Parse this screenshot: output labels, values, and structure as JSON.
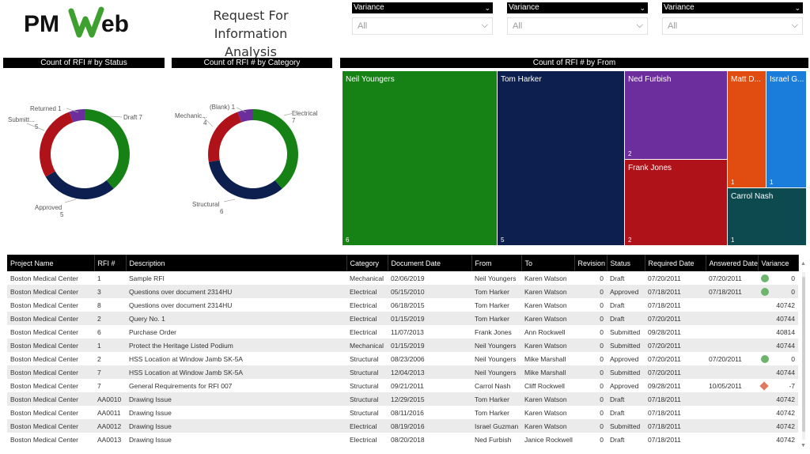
{
  "header": {
    "logo_text": "PMWeb",
    "title_line1": "Request For Information",
    "title_line2": "Analysis"
  },
  "slicers": [
    {
      "label": "Variance",
      "value": "All"
    },
    {
      "label": "Variance",
      "value": "All"
    },
    {
      "label": "Variance",
      "value": "All"
    }
  ],
  "panels": {
    "status_title": "Count of RFI # by Status",
    "category_title": "Count of RFI # by Category",
    "from_title": "Count of RFI # by From"
  },
  "colors": {
    "green": "#168216",
    "navy": "#0c1f4e",
    "red": "#b0121a",
    "purple": "#6b2e9c",
    "orange": "#e14c10",
    "blue": "#1a7ddb",
    "teal": "#0c4a4f"
  },
  "chart_data": [
    {
      "type": "pie",
      "title": "Count of RFI # by Status",
      "categories": [
        "Draft",
        "Approved",
        "Submitted",
        "Returned"
      ],
      "values": [
        7,
        5,
        5,
        1
      ],
      "labels": [
        "Draft 7",
        "Approved 5",
        "Submitt... 5",
        "Returned 1"
      ],
      "colors": [
        "#168216",
        "#0c1f4e",
        "#b0121a",
        "#6b2e9c"
      ]
    },
    {
      "type": "pie",
      "title": "Count of RFI # by Category",
      "categories": [
        "Electrical",
        "Structural",
        "Mechanical",
        "(Blank)"
      ],
      "values": [
        7,
        6,
        4,
        1
      ],
      "labels": [
        "Electrical 7",
        "Structural 6",
        "Mechanic... 4",
        "(Blank) 1"
      ],
      "colors": [
        "#168216",
        "#0c1f4e",
        "#b0121a",
        "#6b2e9c"
      ]
    },
    {
      "type": "treemap",
      "title": "Count of RFI # by From",
      "categories": [
        "Neil Youngers",
        "Tom Harker",
        "Ned Furbish",
        "Frank Jones",
        "Matt D...",
        "Israel G...",
        "Carrol Nash"
      ],
      "values": [
        6,
        5,
        2,
        2,
        1,
        1,
        1
      ],
      "colors": [
        "#168216",
        "#0c1f4e",
        "#6b2e9c",
        "#b0121a",
        "#e14c10",
        "#1a7ddb",
        "#0c4a4f"
      ]
    }
  ],
  "table": {
    "columns": [
      "Project Name",
      "RFI #",
      "Description",
      "Category",
      "Document Date",
      "From",
      "To",
      "Revision",
      "Status",
      "Required Date",
      "Answered Date",
      "Variance"
    ],
    "rows": [
      [
        "Boston Medical Center",
        "1",
        "Sample RFI",
        "Mechanical",
        "02/06/2019",
        "Neil Youngers",
        "Karen Watson",
        "0",
        "Draft",
        "07/20/2011",
        "07/20/2011",
        "0"
      ],
      [
        "Boston Medical Center",
        "3",
        "Questions over document 2314HU",
        "Electrical",
        "05/15/2010",
        "Tom Harker",
        "Karen Watson",
        "0",
        "Approved",
        "07/18/2011",
        "07/18/2011",
        "0"
      ],
      [
        "Boston Medical Center",
        "8",
        "Questions over document 2314HU",
        "Electrical",
        "06/18/2015",
        "Tom Harker",
        "Karen Watson",
        "0",
        "Draft",
        "07/18/2011",
        "",
        "40742"
      ],
      [
        "Boston Medical Center",
        "2",
        "Query No. 1",
        "Electrical",
        "01/15/2019",
        "Tom Harker",
        "Karen Watson",
        "0",
        "Draft",
        "07/20/2011",
        "",
        "40744"
      ],
      [
        "Boston Medical Center",
        "6",
        "Purchase Order",
        "Electrical",
        "11/07/2013",
        "Frank Jones",
        "Ann Rockwell",
        "0",
        "Submitted",
        "09/28/2011",
        "",
        "40814"
      ],
      [
        "Boston Medical Center",
        "1",
        "Protect the Heritage Listed Podium",
        "Mechanical",
        "01/15/2019",
        "Neil Youngers",
        "Karen Watson",
        "0",
        "Submitted",
        "07/20/2011",
        "",
        "40744"
      ],
      [
        "Boston Medical Center",
        "2",
        "HSS Location at Window Jamb SK-5A",
        "Structural",
        "08/23/2006",
        "Neil Youngers",
        "Mike Marshall",
        "0",
        "Approved",
        "07/20/2011",
        "07/20/2011",
        "0"
      ],
      [
        "Boston Medical Center",
        "7",
        "HSS Location at Window Jamb SK-5A",
        "Structural",
        "12/04/2013",
        "Neil Youngers",
        "Mike Marshall",
        "0",
        "Submitted",
        "07/20/2011",
        "",
        "40744"
      ],
      [
        "Boston Medical Center",
        "7",
        "General Requirements for RFI 007",
        "Structural",
        "09/21/2011",
        "Carrol Nash",
        "Cliff Rockwell",
        "0",
        "Approved",
        "09/28/2011",
        "10/05/2011",
        "-7"
      ],
      [
        "Boston Medical Center",
        "AA0010",
        "Drawing Issue",
        "Structural",
        "12/29/2015",
        "Tom Harker",
        "Karen Watson",
        "0",
        "Draft",
        "07/18/2011",
        "",
        "40742"
      ],
      [
        "Boston Medical Center",
        "AA0011",
        "Drawing Issue",
        "Structural",
        "08/11/2016",
        "Tom Harker",
        "Karen Watson",
        "0",
        "Draft",
        "07/18/2011",
        "",
        "40742"
      ],
      [
        "Boston Medical Center",
        "AA0012",
        "Drawing Issue",
        "Electrical",
        "08/19/2016",
        "Israel Guzman",
        "Karen Watson",
        "0",
        "Submitted",
        "07/18/2011",
        "",
        "40742"
      ],
      [
        "Boston Medical Center",
        "AA0013",
        "Drawing Issue",
        "Electrical",
        "08/20/2018",
        "Ned Furbish",
        "Janice Rockwell",
        "0",
        "Draft",
        "07/18/2011",
        "",
        "40742"
      ]
    ],
    "indicators": [
      "green",
      "green",
      "",
      "",
      "",
      "",
      "green",
      "",
      "red",
      "",
      "",
      "",
      ""
    ]
  }
}
